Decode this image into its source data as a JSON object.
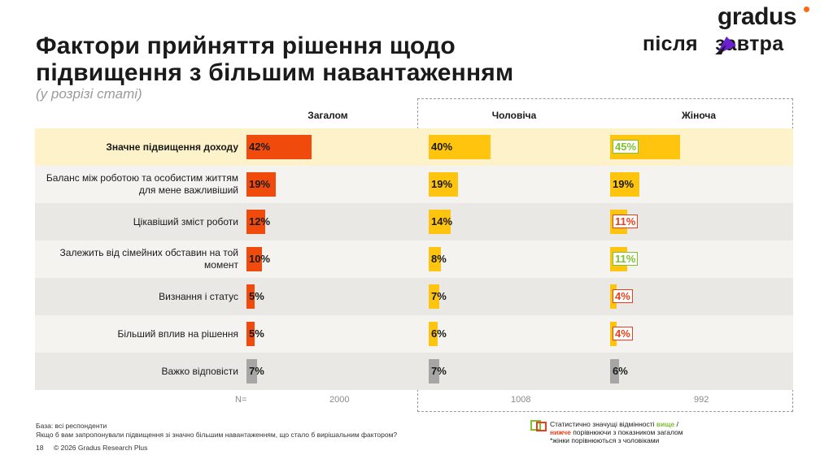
{
  "title_line1": "Фактори прийняття рішення щодо",
  "title_line2": "підвищення з більшим навантаженням",
  "subtitle": "(у розрізі статі)",
  "logo": {
    "gradus": "gradus",
    "pz": "після    завтра"
  },
  "columns": [
    "Загалом",
    "Чоловіча",
    "Жіноча"
  ],
  "colors": {
    "total": "#f04b0c",
    "male": "#ffc40d",
    "female": "#ffc40d",
    "dont_know": "#a6a6a6",
    "higher": "#7cc22e",
    "lower": "#e8401c",
    "highlight": "#fdf2c9",
    "alt_row": "#f4f3f0",
    "alt_row2": "#e9e8e5"
  },
  "chart_data": {
    "type": "bar",
    "categories": [
      "Значне підвищення доходу",
      "Баланс між роботою та особистим життям для мене важливіший",
      "Цікавіший зміст роботи",
      "Залежить від сімейних обставин на той момент",
      "Визнання і статус",
      "Більший вплив на рішення",
      "Важко відповісти"
    ],
    "series": [
      {
        "name": "Загалом",
        "values": [
          42,
          19,
          12,
          10,
          5,
          5,
          7
        ]
      },
      {
        "name": "Чоловіча",
        "values": [
          40,
          19,
          14,
          8,
          7,
          6,
          7
        ]
      },
      {
        "name": "Жіноча",
        "values": [
          45,
          19,
          11,
          11,
          4,
          4,
          6
        ],
        "significance": [
          "higher",
          "none",
          "lower",
          "higher",
          "lower",
          "lower",
          "none"
        ]
      }
    ],
    "labels": {
      "total": [
        "42%",
        "19%",
        "12%",
        "10%",
        "5%",
        "5%",
        "7%"
      ],
      "male": [
        "40%",
        "19%",
        "14%",
        "8%",
        "7%",
        "6%",
        "7%"
      ],
      "female": [
        "45%",
        "19%",
        "11%",
        "11%",
        "4%",
        "4%",
        "6%"
      ]
    },
    "n_label": "N=",
    "n_values": [
      "2000",
      "1008",
      "992"
    ]
  },
  "footnotes": {
    "base": "База: всі респонденти",
    "question": "Якщо б вам запропонували підвищення зі значно більшим навантаженням, що стало б вирішальним фактором?",
    "page": "18",
    "copyright": "© 2026 Gradus Research Plus"
  },
  "legend": {
    "line1_prefix": "Статистично значущі відмінності ",
    "higher_word": "вище",
    "line1_suffix": " /",
    "lower_word": "нижче",
    "line2_suffix": " порівнюючи з показником загалом",
    "line3": "*жінки порівнюються з чоловіками"
  }
}
